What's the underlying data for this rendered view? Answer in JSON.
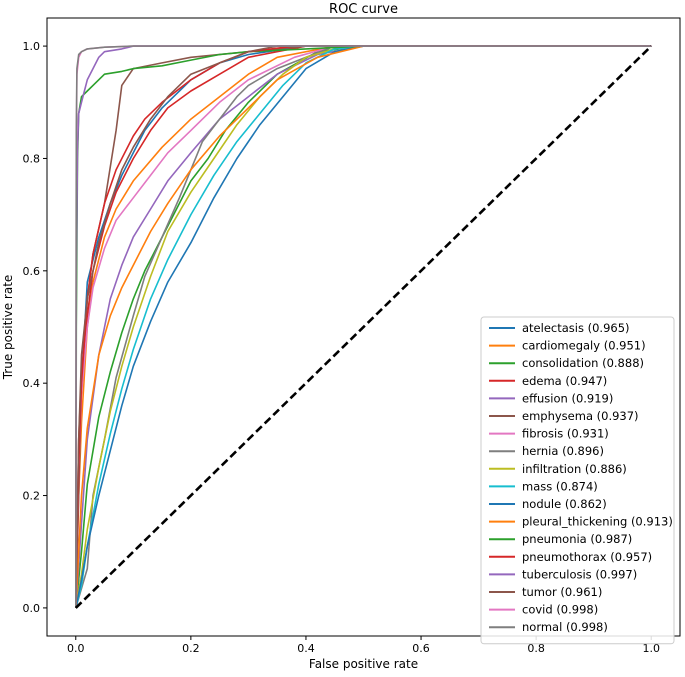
{
  "chart_data": {
    "type": "line",
    "title": "ROC curve",
    "xlabel": "False positive rate",
    "ylabel": "True positive rate",
    "xlim": [
      -0.05,
      1.05
    ],
    "ylim": [
      -0.05,
      1.05
    ],
    "xticks": [
      0.0,
      0.2,
      0.4,
      0.6,
      0.8,
      1.0
    ],
    "yticks": [
      0.0,
      0.2,
      0.4,
      0.6,
      0.8,
      1.0
    ],
    "tick_labels": [
      "0.0",
      "0.2",
      "0.4",
      "0.6",
      "0.8",
      "1.0"
    ],
    "grid": false,
    "legend_position": "lower-right",
    "baseline": {
      "x": [
        0,
        1
      ],
      "y": [
        0,
        1
      ],
      "style": "dashed",
      "color": "#000000"
    },
    "series": [
      {
        "name": "atelectasis",
        "label": "atelectasis (0.965)",
        "auc": 0.965,
        "color": "#1f77b4",
        "x": [
          0,
          0.005,
          0.01,
          0.02,
          0.04,
          0.06,
          0.08,
          0.1,
          0.12,
          0.15,
          0.2,
          0.25,
          0.3,
          0.4,
          1.0
        ],
        "y": [
          0,
          0.25,
          0.4,
          0.58,
          0.66,
          0.72,
          0.77,
          0.81,
          0.85,
          0.89,
          0.94,
          0.97,
          0.985,
          1.0,
          1.0
        ]
      },
      {
        "name": "cardiomegaly",
        "label": "cardiomegaly (0.951)",
        "auc": 0.951,
        "color": "#ff7f0e",
        "x": [
          0,
          0.005,
          0.01,
          0.02,
          0.03,
          0.05,
          0.07,
          0.1,
          0.15,
          0.2,
          0.25,
          0.3,
          0.35,
          0.45,
          1.0
        ],
        "y": [
          0,
          0.2,
          0.33,
          0.5,
          0.58,
          0.66,
          0.71,
          0.76,
          0.82,
          0.87,
          0.91,
          0.95,
          0.98,
          1.0,
          1.0
        ]
      },
      {
        "name": "consolidation",
        "label": "consolidation (0.888)",
        "auc": 0.888,
        "color": "#2ca02c",
        "x": [
          0,
          0.01,
          0.02,
          0.04,
          0.06,
          0.08,
          0.1,
          0.12,
          0.15,
          0.18,
          0.2,
          0.23,
          0.26,
          0.3,
          0.35,
          0.42,
          0.5,
          1.0
        ],
        "y": [
          0,
          0.1,
          0.22,
          0.34,
          0.42,
          0.49,
          0.55,
          0.6,
          0.66,
          0.72,
          0.76,
          0.8,
          0.85,
          0.9,
          0.95,
          0.99,
          1.0,
          1.0
        ]
      },
      {
        "name": "edema",
        "label": "edema (0.947)",
        "auc": 0.947,
        "color": "#d62728",
        "x": [
          0,
          0.005,
          0.01,
          0.02,
          0.03,
          0.05,
          0.07,
          0.1,
          0.13,
          0.16,
          0.2,
          0.25,
          0.3,
          0.4,
          1.0
        ],
        "y": [
          0,
          0.3,
          0.42,
          0.52,
          0.6,
          0.68,
          0.74,
          0.8,
          0.85,
          0.89,
          0.92,
          0.95,
          0.98,
          1.0,
          1.0
        ]
      },
      {
        "name": "effusion",
        "label": "effusion (0.919)",
        "auc": 0.919,
        "color": "#9467bd",
        "x": [
          0,
          0.01,
          0.02,
          0.04,
          0.06,
          0.08,
          0.1,
          0.13,
          0.16,
          0.2,
          0.25,
          0.3,
          0.35,
          0.42,
          0.5,
          1.0
        ],
        "y": [
          0,
          0.15,
          0.3,
          0.45,
          0.55,
          0.61,
          0.66,
          0.71,
          0.76,
          0.81,
          0.87,
          0.91,
          0.95,
          0.985,
          1.0,
          1.0
        ]
      },
      {
        "name": "emphysema",
        "label": "emphysema (0.937)",
        "auc": 0.937,
        "color": "#8c564b",
        "x": [
          0,
          0.005,
          0.01,
          0.02,
          0.03,
          0.05,
          0.07,
          0.08,
          0.1,
          0.15,
          0.2,
          0.3,
          0.4,
          1.0
        ],
        "y": [
          0,
          0.2,
          0.4,
          0.55,
          0.63,
          0.72,
          0.85,
          0.93,
          0.96,
          0.97,
          0.98,
          0.99,
          1.0,
          1.0
        ]
      },
      {
        "name": "fibrosis",
        "label": "fibrosis (0.931)",
        "auc": 0.931,
        "color": "#e377c2",
        "x": [
          0,
          0.005,
          0.01,
          0.02,
          0.03,
          0.05,
          0.07,
          0.1,
          0.13,
          0.16,
          0.2,
          0.25,
          0.3,
          0.38,
          0.45,
          1.0
        ],
        "y": [
          0,
          0.25,
          0.38,
          0.5,
          0.57,
          0.64,
          0.69,
          0.73,
          0.77,
          0.81,
          0.85,
          0.9,
          0.94,
          0.98,
          1.0,
          1.0
        ]
      },
      {
        "name": "hernia",
        "label": "hernia (0.896)",
        "auc": 0.896,
        "color": "#7f7f7f",
        "x": [
          0,
          0.02,
          0.03,
          0.05,
          0.07,
          0.1,
          0.12,
          0.15,
          0.18,
          0.2,
          0.22,
          0.25,
          0.28,
          0.3,
          0.35,
          0.4,
          0.45,
          1.0
        ],
        "y": [
          0,
          0.07,
          0.2,
          0.3,
          0.41,
          0.52,
          0.59,
          0.66,
          0.73,
          0.78,
          0.83,
          0.87,
          0.91,
          0.93,
          0.96,
          0.98,
          1.0,
          1.0
        ]
      },
      {
        "name": "infiltration",
        "label": "infiltration (0.886)",
        "auc": 0.886,
        "color": "#bcbd22",
        "x": [
          0,
          0.01,
          0.02,
          0.04,
          0.06,
          0.08,
          0.1,
          0.13,
          0.16,
          0.2,
          0.24,
          0.28,
          0.32,
          0.36,
          0.4,
          0.45,
          0.5,
          1.0
        ],
        "y": [
          0,
          0.06,
          0.14,
          0.25,
          0.35,
          0.43,
          0.5,
          0.59,
          0.67,
          0.74,
          0.8,
          0.86,
          0.91,
          0.95,
          0.98,
          0.995,
          1.0,
          1.0
        ]
      },
      {
        "name": "mass",
        "label": "mass (0.874)",
        "auc": 0.874,
        "color": "#17becf",
        "x": [
          0,
          0.01,
          0.02,
          0.04,
          0.06,
          0.08,
          0.1,
          0.13,
          0.16,
          0.2,
          0.24,
          0.28,
          0.32,
          0.36,
          0.4,
          0.45,
          0.5,
          1.0
        ],
        "y": [
          0,
          0.04,
          0.11,
          0.22,
          0.31,
          0.39,
          0.46,
          0.55,
          0.62,
          0.7,
          0.77,
          0.83,
          0.88,
          0.93,
          0.97,
          0.995,
          1.0,
          1.0
        ]
      },
      {
        "name": "nodule",
        "label": "nodule (0.862)",
        "auc": 0.862,
        "color": "#1f77b4",
        "x": [
          0,
          0.01,
          0.02,
          0.04,
          0.06,
          0.08,
          0.1,
          0.13,
          0.16,
          0.2,
          0.24,
          0.28,
          0.32,
          0.36,
          0.4,
          0.45,
          0.5,
          1.0
        ],
        "y": [
          0,
          0.05,
          0.11,
          0.2,
          0.28,
          0.36,
          0.43,
          0.51,
          0.58,
          0.65,
          0.73,
          0.8,
          0.86,
          0.91,
          0.96,
          0.99,
          1.0,
          1.0
        ]
      },
      {
        "name": "pleural_thickening",
        "label": "pleural_thickening (0.913)",
        "auc": 0.913,
        "color": "#ff7f0e",
        "x": [
          0,
          0.005,
          0.01,
          0.02,
          0.04,
          0.06,
          0.08,
          0.1,
          0.13,
          0.16,
          0.2,
          0.25,
          0.3,
          0.35,
          0.42,
          0.5,
          1.0
        ],
        "y": [
          0,
          0.1,
          0.2,
          0.32,
          0.45,
          0.52,
          0.57,
          0.61,
          0.67,
          0.72,
          0.78,
          0.84,
          0.89,
          0.94,
          0.98,
          1.0,
          1.0
        ]
      },
      {
        "name": "pneumonia",
        "label": "pneumonia (0.987)",
        "auc": 0.987,
        "color": "#2ca02c",
        "x": [
          0,
          0.001,
          0.003,
          0.005,
          0.01,
          0.02,
          0.03,
          0.05,
          0.08,
          0.1,
          0.15,
          0.2,
          0.25,
          0.3,
          0.4,
          0.5,
          1.0
        ],
        "y": [
          0,
          0.5,
          0.8,
          0.88,
          0.91,
          0.92,
          0.93,
          0.95,
          0.955,
          0.96,
          0.965,
          0.975,
          0.985,
          0.99,
          0.995,
          1.0,
          1.0
        ]
      },
      {
        "name": "pneumothorax",
        "label": "pneumothorax (0.957)",
        "auc": 0.957,
        "color": "#d62728",
        "x": [
          0,
          0.005,
          0.01,
          0.02,
          0.03,
          0.05,
          0.07,
          0.1,
          0.12,
          0.15,
          0.2,
          0.25,
          0.3,
          0.38,
          1.0
        ],
        "y": [
          0,
          0.25,
          0.4,
          0.55,
          0.63,
          0.72,
          0.78,
          0.84,
          0.87,
          0.9,
          0.94,
          0.97,
          0.99,
          1.0,
          1.0
        ]
      },
      {
        "name": "tuberculosis",
        "label": "tuberculosis (0.997)",
        "auc": 0.997,
        "color": "#9467bd",
        "x": [
          0,
          0.001,
          0.003,
          0.005,
          0.01,
          0.015,
          0.02,
          0.03,
          0.04,
          0.05,
          0.08,
          0.1,
          1.0
        ],
        "y": [
          0,
          0.6,
          0.82,
          0.88,
          0.9,
          0.92,
          0.94,
          0.96,
          0.98,
          0.99,
          0.995,
          1.0,
          1.0
        ]
      },
      {
        "name": "tumor",
        "label": "tumor (0.961)",
        "auc": 0.961,
        "color": "#8c564b",
        "x": [
          0,
          0.005,
          0.01,
          0.02,
          0.04,
          0.06,
          0.08,
          0.1,
          0.13,
          0.16,
          0.2,
          0.25,
          0.3,
          0.35,
          1.0
        ],
        "y": [
          0,
          0.3,
          0.45,
          0.55,
          0.65,
          0.72,
          0.78,
          0.82,
          0.87,
          0.91,
          0.95,
          0.97,
          0.99,
          1.0,
          1.0
        ]
      },
      {
        "name": "covid",
        "label": "covid (0.998)",
        "auc": 0.998,
        "color": "#e377c2",
        "x": [
          0,
          0.001,
          0.002,
          0.005,
          0.01,
          0.02,
          0.05,
          0.1,
          1.0
        ],
        "y": [
          0,
          0.8,
          0.95,
          0.98,
          0.99,
          0.995,
          0.998,
          1.0,
          1.0
        ]
      },
      {
        "name": "normal",
        "label": "normal (0.998)",
        "auc": 0.998,
        "color": "#7f7f7f",
        "x": [
          0,
          0.001,
          0.002,
          0.005,
          0.01,
          0.02,
          0.05,
          0.1,
          1.0
        ],
        "y": [
          0,
          0.85,
          0.96,
          0.985,
          0.99,
          0.995,
          0.998,
          1.0,
          1.0
        ]
      }
    ]
  }
}
